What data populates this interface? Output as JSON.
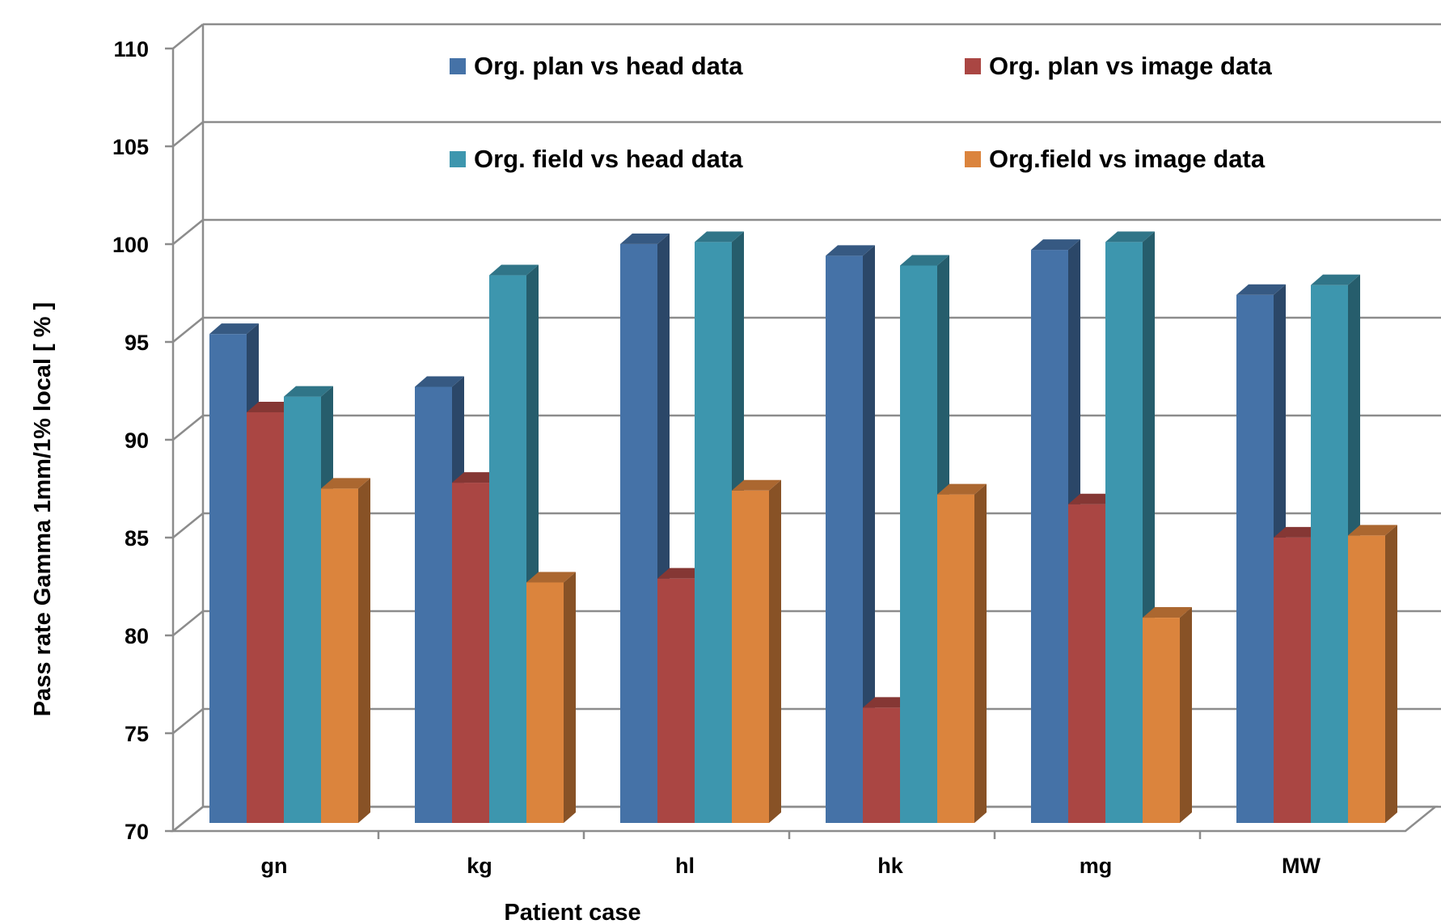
{
  "chart_data": {
    "type": "bar",
    "categories": [
      "gn",
      "kg",
      "hl",
      "hk",
      "mg",
      "MW"
    ],
    "series": [
      {
        "name": "Org. plan vs head data",
        "color": "#4572A7",
        "values": [
          95.2,
          92.5,
          99.8,
          99.2,
          99.5,
          97.2
        ]
      },
      {
        "name": "Org. plan vs image data",
        "color": "#AA4643",
        "values": [
          91.2,
          87.6,
          82.7,
          76.1,
          86.5,
          84.8
        ]
      },
      {
        "name": "Org. field vs head data",
        "color": "#3D96AE",
        "values": [
          92.0,
          98.2,
          99.9,
          98.7,
          99.9,
          97.7
        ]
      },
      {
        "name": "Org.field vs image data",
        "color": "#DB843D",
        "values": [
          87.3,
          82.5,
          87.2,
          87.0,
          80.7,
          84.9
        ]
      }
    ],
    "title": "",
    "xlabel": "Patient case",
    "ylabel": "Pass rate Gamma 1mm/1% local [ % ]",
    "ylim": [
      70,
      110
    ],
    "yticks": [
      "70",
      "75",
      "80",
      "85",
      "90",
      "95",
      "100",
      "105",
      "110"
    ],
    "grid": true,
    "legend_position": "top-inside",
    "three_d": true
  }
}
